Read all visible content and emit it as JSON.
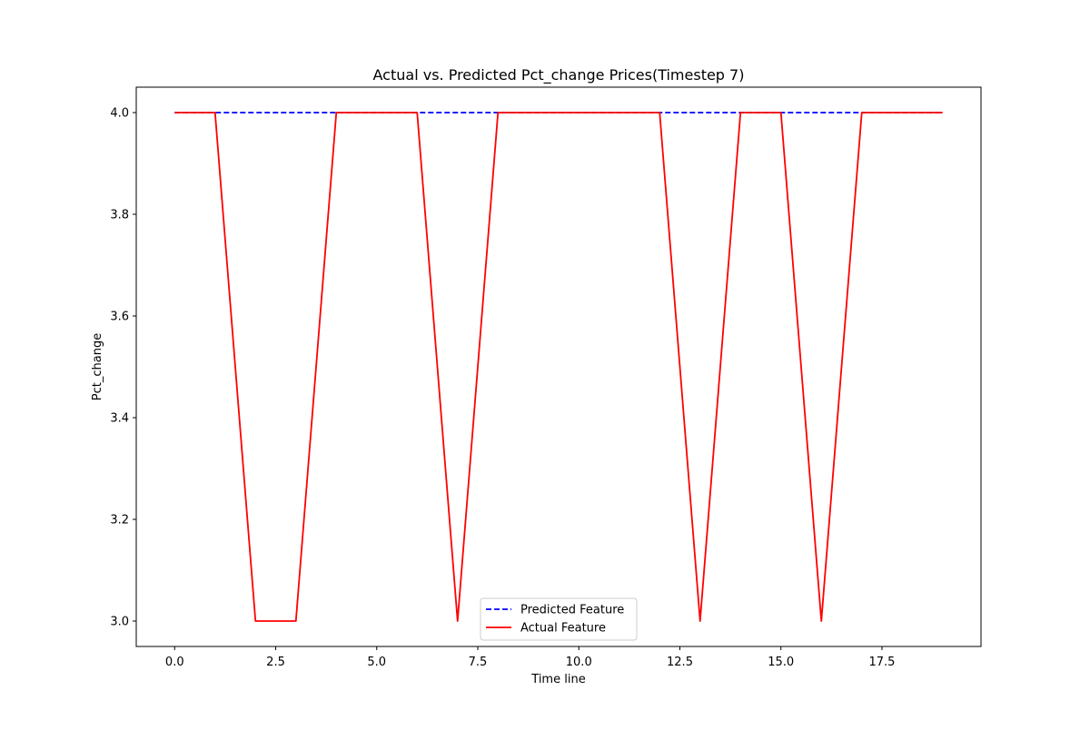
{
  "chart_data": {
    "type": "line",
    "title": "Actual vs. Predicted Pct_change Prices(Timestep 7)",
    "xlabel": "Time line",
    "ylabel": "Pct_change",
    "xlim": [
      -0.95,
      19.95
    ],
    "ylim": [
      2.95,
      4.05
    ],
    "xticks": [
      0.0,
      2.5,
      5.0,
      7.5,
      10.0,
      12.5,
      15.0,
      17.5
    ],
    "xtick_labels": [
      "0.0",
      "2.5",
      "5.0",
      "7.5",
      "10.0",
      "12.5",
      "15.0",
      "17.5"
    ],
    "yticks": [
      3.0,
      3.2,
      3.4,
      3.6,
      3.8,
      4.0
    ],
    "ytick_labels": [
      "3.0",
      "3.2",
      "3.4",
      "3.6",
      "3.8",
      "4.0"
    ],
    "grid": false,
    "legend_position": "lower center",
    "x": [
      0,
      1,
      2,
      3,
      4,
      5,
      6,
      7,
      8,
      9,
      10,
      11,
      12,
      13,
      14,
      15,
      16,
      17,
      18,
      19
    ],
    "series": [
      {
        "name": "Predicted Feature",
        "color": "#0000ff",
        "style": "dashed",
        "values": [
          4,
          4,
          4,
          4,
          4,
          4,
          4,
          4,
          4,
          4,
          4,
          4,
          4,
          4,
          4,
          4,
          4,
          4,
          4,
          4
        ]
      },
      {
        "name": "Actual Feature",
        "color": "#ff0000",
        "style": "solid",
        "values": [
          4,
          4,
          3,
          3,
          4,
          4,
          4,
          3,
          4,
          4,
          4,
          4,
          4,
          3,
          4,
          4,
          3,
          4,
          4,
          4
        ]
      }
    ]
  }
}
